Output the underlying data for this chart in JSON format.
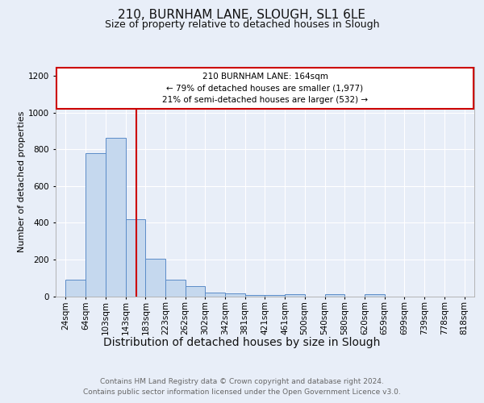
{
  "title1": "210, BURNHAM LANE, SLOUGH, SL1 6LE",
  "title2": "Size of property relative to detached houses in Slough",
  "xlabel": "Distribution of detached houses by size in Slough",
  "ylabel": "Number of detached properties",
  "footer1": "Contains HM Land Registry data © Crown copyright and database right 2024.",
  "footer2": "Contains public sector information licensed under the Open Government Licence v3.0.",
  "annotation_line1": "210 BURNHAM LANE: 164sqm",
  "annotation_line2": "← 79% of detached houses are smaller (1,977)",
  "annotation_line3": "21% of semi-detached houses are larger (532) →",
  "bar_edges": [
    24,
    64,
    103,
    143,
    183,
    223,
    262,
    302,
    342,
    381,
    421,
    461,
    500,
    540,
    580,
    620,
    659,
    699,
    739,
    778,
    818
  ],
  "bar_heights": [
    90,
    780,
    860,
    420,
    205,
    90,
    55,
    20,
    15,
    5,
    5,
    10,
    0,
    10,
    0,
    10,
    0,
    0,
    0,
    0
  ],
  "bar_color": "#c5d8ee",
  "bar_edge_color": "#5b8cc8",
  "property_size": 164,
  "red_line_color": "#cc0000",
  "annotation_box_color": "#cc0000",
  "ylim": [
    0,
    1250
  ],
  "xlim_left": 4,
  "xlim_right": 838,
  "plot_bg_color": "#e8eef8",
  "grid_color": "#ffffff",
  "title1_fontsize": 11,
  "title2_fontsize": 9,
  "xlabel_fontsize": 10,
  "ylabel_fontsize": 8,
  "tick_fontsize": 7.5,
  "footer_fontsize": 6.5,
  "annotation_fontsize": 7.5
}
